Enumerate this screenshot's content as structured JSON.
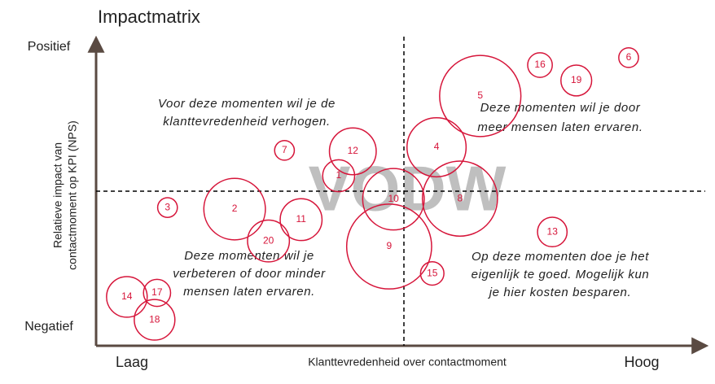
{
  "chart_data": {
    "type": "bubble",
    "title": "Impactmatrix",
    "x_label": "Klanttevredenheid over contactmoment",
    "y_label": [
      "Relatieve impact van",
      "contactmoment op KPI (NPS)"
    ],
    "x_low": "Laag",
    "x_high": "Hoog",
    "y_high": "Positief",
    "y_low": "Negatief",
    "watermark": "VODW",
    "annotations": [
      {
        "lines": [
          "Voor deze momenten wil je de",
          "klanttevredenheid verhogen."
        ]
      },
      {
        "lines": [
          "Deze momenten wil je door",
          "meer mensen laten ervaren."
        ]
      },
      {
        "lines": [
          "Deze momenten wil je",
          "verbeteren of door minder",
          "mensen laten ervaren."
        ]
      },
      {
        "lines": [
          "Op deze momenten doe je het",
          "eigenlijk te goed. Mogelijk kun",
          "je hier kosten besparen."
        ]
      }
    ],
    "color": "#d6153a",
    "xlim": [
      0,
      100
    ],
    "ylim": [
      0,
      100
    ],
    "x_divider": 50,
    "y_divider": 50,
    "categories": [
      "1",
      "2",
      "3",
      "4",
      "5",
      "6",
      "7",
      "8",
      "9",
      "10",
      "11",
      "12",
      "13",
      "14",
      "15",
      "16",
      "17",
      "18",
      "19",
      "20"
    ],
    "x": [
      39.4,
      22.5,
      11.6,
      55.3,
      62.4,
      86.5,
      30.6,
      59.1,
      47.6,
      48.3,
      33.3,
      41.7,
      74.1,
      5.0,
      54.6,
      72.1,
      9.9,
      9.5,
      78.0,
      28.0
    ],
    "values": [
      55.0,
      44.2,
      44.7,
      64.2,
      80.8,
      93.2,
      63.2,
      47.6,
      32.1,
      47.4,
      40.8,
      62.9,
      36.8,
      15.8,
      23.4,
      90.8,
      17.1,
      8.4,
      85.8,
      33.9
    ],
    "sizes": [
      2.6,
      5.0,
      1.6,
      4.8,
      6.6,
      1.6,
      1.6,
      6.1,
      6.9,
      5.0,
      3.4,
      3.8,
      2.4,
      3.3,
      1.9,
      2.0,
      2.2,
      3.3,
      2.5,
      3.4
    ]
  }
}
